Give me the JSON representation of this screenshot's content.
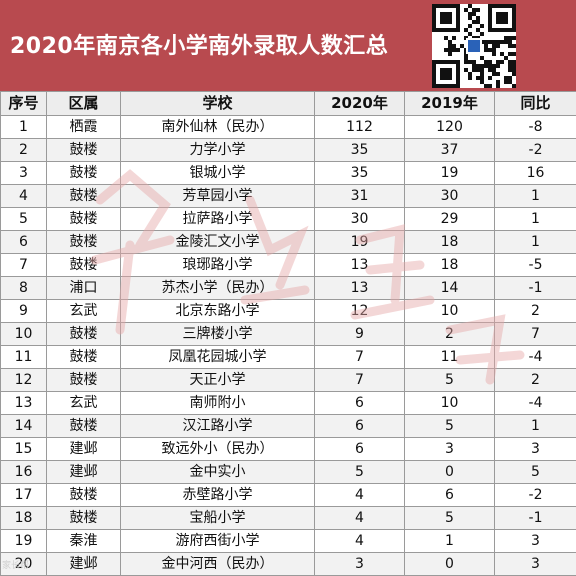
{
  "title": "2020年南京各小学南外录取人数汇总",
  "table": {
    "headers": [
      "序号",
      "区属",
      "学校",
      "2020年",
      "2019年",
      "同比"
    ],
    "rows": [
      [
        "1",
        "栖霞",
        "南外仙林（民办）",
        "112",
        "120",
        "-8"
      ],
      [
        "2",
        "鼓楼",
        "力学小学",
        "35",
        "37",
        "-2"
      ],
      [
        "3",
        "鼓楼",
        "银城小学",
        "35",
        "19",
        "16"
      ],
      [
        "4",
        "鼓楼",
        "芳草园小学",
        "31",
        "30",
        "1"
      ],
      [
        "5",
        "鼓楼",
        "拉萨路小学",
        "30",
        "29",
        "1"
      ],
      [
        "6",
        "鼓楼",
        "金陵汇文小学",
        "19",
        "18",
        "1"
      ],
      [
        "7",
        "鼓楼",
        "琅琊路小学",
        "13",
        "18",
        "-5"
      ],
      [
        "8",
        "浦口",
        "苏杰小学（民办）",
        "13",
        "14",
        "-1"
      ],
      [
        "9",
        "玄武",
        "北京东路小学",
        "12",
        "10",
        "2"
      ],
      [
        "10",
        "鼓楼",
        "三牌楼小学",
        "9",
        "2",
        "7"
      ],
      [
        "11",
        "鼓楼",
        "凤凰花园城小学",
        "7",
        "11",
        "-4"
      ],
      [
        "12",
        "鼓楼",
        "天正小学",
        "7",
        "5",
        "2"
      ],
      [
        "13",
        "玄武",
        "南师附小",
        "6",
        "10",
        "-4"
      ],
      [
        "14",
        "鼓楼",
        "汉江路小学",
        "6",
        "5",
        "1"
      ],
      [
        "15",
        "建邺",
        "致远外小（民办）",
        "6",
        "3",
        "3"
      ],
      [
        "16",
        "建邺",
        "金中实小",
        "5",
        "0",
        "5"
      ],
      [
        "17",
        "鼓楼",
        "赤壁路小学",
        "4",
        "6",
        "-2"
      ],
      [
        "18",
        "鼓楼",
        "宝船小学",
        "4",
        "5",
        "-1"
      ],
      [
        "19",
        "秦淮",
        "游府西街小学",
        "4",
        "1",
        "3"
      ],
      [
        "20",
        "建邺",
        "金中河西（民办）",
        "3",
        "0",
        "3"
      ]
    ]
  },
  "colors": {
    "banner": "#b84a4f",
    "watermark": "#e6a7a7"
  }
}
